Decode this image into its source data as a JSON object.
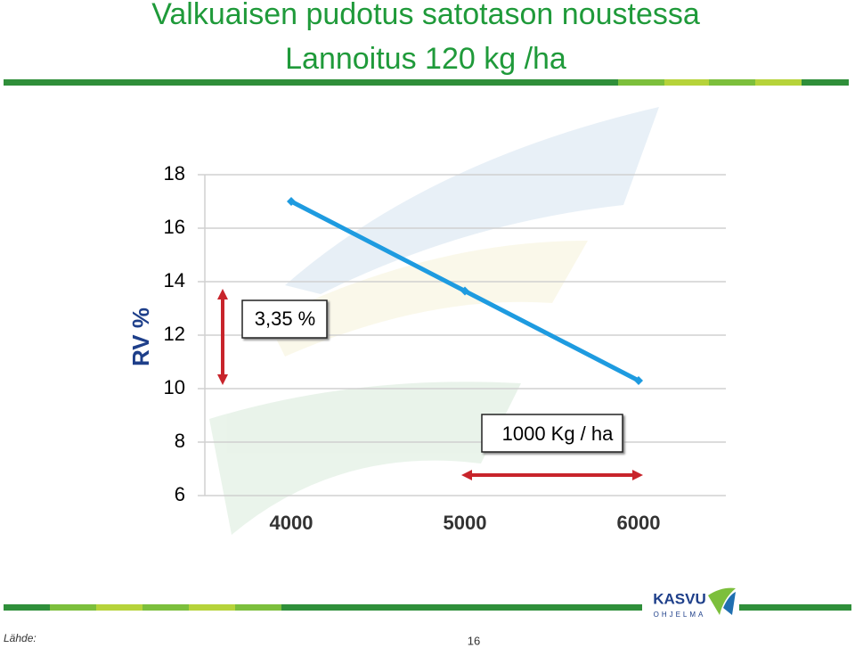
{
  "chart_data": {
    "type": "line",
    "title": "Valkuaisen pudotus satotason noustessa",
    "subtitle": "Lannoitus 120 kg /ha",
    "y_label": "RV %",
    "categories": [
      "4000",
      "5000",
      "6000"
    ],
    "values": [
      17.0,
      13.65,
      10.3
    ],
    "color": "#1e9be0",
    "ylim": [
      6,
      18
    ],
    "yticks": [
      6,
      8,
      10,
      12,
      14,
      16,
      18
    ],
    "grid": true,
    "annotations": [
      "3,35 %",
      "1000 Kg / ha"
    ]
  },
  "footer": {
    "source_label": "Lähde:",
    "page": "16",
    "logo": "KASVU",
    "logo_sub": "OHJELMA"
  }
}
